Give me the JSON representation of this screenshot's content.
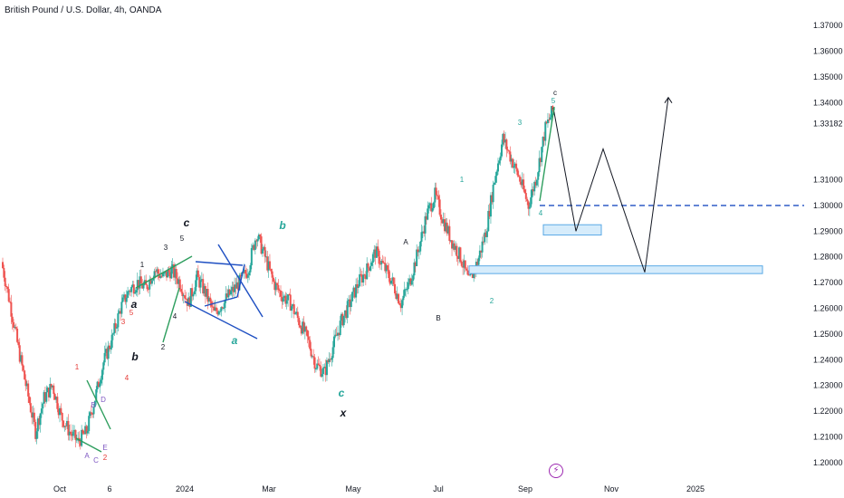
{
  "chart_data": {
    "type": "candlestick",
    "title": "British Pound / U.S. Dollar, 4h, OANDA",
    "symbol": "GBPUSD",
    "timeframe": "4h",
    "source": "OANDA",
    "y_ticks": [
      "1.37000",
      "1.36000",
      "1.35000",
      "1.34000",
      "1.31000",
      "1.30000",
      "1.29000",
      "1.28000",
      "1.27000",
      "1.26000",
      "1.25000",
      "1.24000",
      "1.23000",
      "1.22000",
      "1.21000",
      "1.20000"
    ],
    "last_price_label": "1.33182",
    "x_ticks": [
      "Oct",
      "6",
      "2024",
      "Mar",
      "May",
      "Jul",
      "Sep",
      "Nov",
      "2025"
    ],
    "ylim": [
      1.195,
      1.375
    ],
    "colors": {
      "up": "#26a69a",
      "down": "#ef5350",
      "wave_green": "#26a69a",
      "wave_red": "#e53935",
      "wave_purple": "#7e57c2",
      "pattern_blue": "#1e4fc2",
      "pattern_green": "#2e9e5e",
      "zone_fill": "#d6ecfb",
      "zone_stroke": "#5aa9e6"
    },
    "price_path": [
      [
        "Oct",
        1.278
      ],
      [
        "Oct",
        1.262
      ],
      [
        "Oct",
        1.244
      ],
      [
        "Oct",
        1.228
      ],
      [
        "Oct",
        1.212
      ],
      [
        "Oct",
        1.225
      ],
      [
        "Oct",
        1.23
      ],
      [
        "Oct",
        1.218
      ],
      [
        "Oct",
        1.212
      ],
      [
        "Oct",
        1.208
      ],
      [
        "6",
        1.212
      ],
      [
        "6",
        1.225
      ],
      [
        "6",
        1.239
      ],
      [
        "6",
        1.248
      ],
      [
        "6",
        1.26
      ],
      [
        "6",
        1.267
      ],
      [
        "6",
        1.27
      ],
      [
        "6",
        1.268
      ],
      [
        "6",
        1.275
      ],
      [
        "6",
        1.272
      ],
      [
        "2024",
        1.275
      ],
      [
        "2024",
        1.27
      ],
      [
        "2024",
        1.262
      ],
      [
        "2024",
        1.272
      ],
      [
        "2024",
        1.266
      ],
      [
        "2024",
        1.258
      ],
      [
        "2024",
        1.262
      ],
      [
        "2024",
        1.266
      ],
      [
        "2024",
        1.27
      ],
      [
        "2024",
        1.275
      ],
      [
        "Mar",
        1.289
      ],
      [
        "Mar",
        1.28
      ],
      [
        "Mar",
        1.27
      ],
      [
        "Mar",
        1.265
      ],
      [
        "Mar",
        1.262
      ],
      [
        "Mar",
        1.255
      ],
      [
        "Mar",
        1.248
      ],
      [
        "Mar",
        1.238
      ],
      [
        "Mar",
        1.235
      ],
      [
        "Mar",
        1.245
      ],
      [
        "May",
        1.255
      ],
      [
        "May",
        1.262
      ],
      [
        "May",
        1.27
      ],
      [
        "May",
        1.275
      ],
      [
        "May",
        1.282
      ],
      [
        "May",
        1.276
      ],
      [
        "May",
        1.27
      ],
      [
        "May",
        1.262
      ],
      [
        "May",
        1.27
      ],
      [
        "May",
        1.282
      ],
      [
        "Jul",
        1.296
      ],
      [
        "Jul",
        1.304
      ],
      [
        "Jul",
        1.294
      ],
      [
        "Jul",
        1.286
      ],
      [
        "Jul",
        1.28
      ],
      [
        "Jul",
        1.27
      ],
      [
        "Jul",
        1.278
      ],
      [
        "Jul",
        1.29
      ],
      [
        "Jul",
        1.31
      ],
      [
        "Jul",
        1.326
      ],
      [
        "Sep",
        1.318
      ],
      [
        "Sep",
        1.31
      ],
      [
        "Sep",
        1.3
      ],
      [
        "Sep",
        1.312
      ],
      [
        "Sep",
        1.33
      ],
      [
        "Sep",
        1.338
      ]
    ],
    "projection": [
      1.338,
      1.29,
      1.322,
      1.274,
      1.342
    ],
    "resistance_line": 1.3,
    "zones": [
      {
        "label": "zone-1",
        "low": 1.2885,
        "high": 1.2925
      },
      {
        "label": "zone-2",
        "low": 1.2735,
        "high": 1.2765
      }
    ],
    "wave_labels": {
      "c_top": "c",
      "five_top": "5",
      "three": "3",
      "one": "1",
      "four": "4",
      "two": "2",
      "A": "A",
      "B": "B",
      "b_green": "b",
      "c_green": "c",
      "x": "x",
      "a_green": "a",
      "c_black": "c",
      "one_small": "1",
      "three_small": "3",
      "five_small": "5",
      "four_small": "4",
      "two_small": "2",
      "a_black": "a",
      "b_black": "b",
      "red_1": "1",
      "red_3": "3",
      "red_5": "5",
      "red_2": "2",
      "red_4": "4",
      "purple_A": "A",
      "purple_B": "B",
      "purple_C": "C",
      "purple_D": "D",
      "purple_E": "E"
    },
    "flash_icon": "flash-icon"
  }
}
